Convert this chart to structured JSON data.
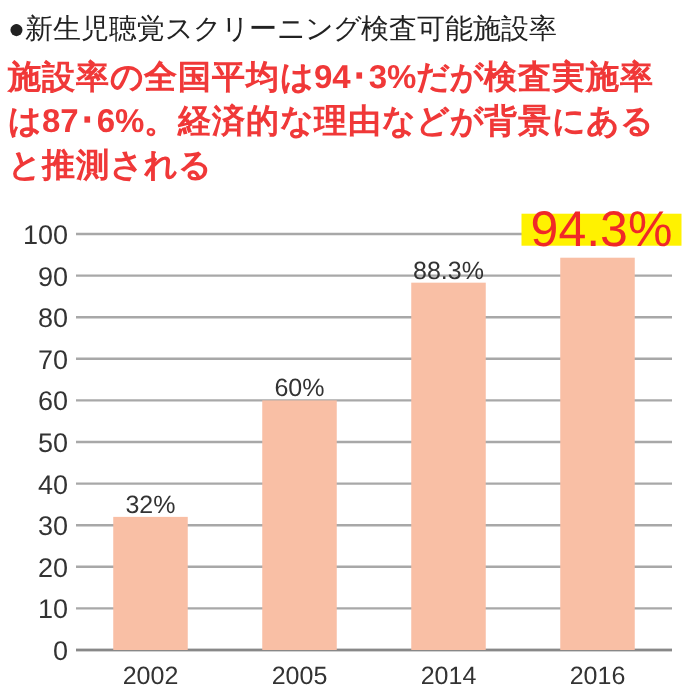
{
  "chart_data": {
    "type": "bar",
    "title": "●新生児聴覚スクリーニング検査可能施設率",
    "subtitle": "施設率の全国平均は94･3%だが検査実施率は87･6%。経済的な理由などが背景にあると推測される",
    "categories": [
      "2002",
      "2005",
      "2014",
      "2016"
    ],
    "values": [
      32,
      60,
      88.3,
      94.3
    ],
    "value_labels": [
      "32%",
      "60%",
      "88.3%",
      "94.3%"
    ],
    "color": "#f9bfa5",
    "ylim": [
      0,
      100
    ],
    "yticks": [
      0,
      10,
      20,
      30,
      40,
      50,
      60,
      70,
      80,
      90,
      100
    ],
    "grid": "y"
  }
}
